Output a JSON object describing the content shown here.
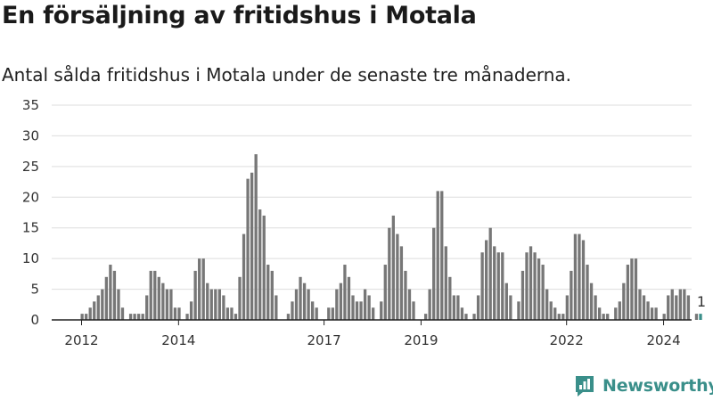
{
  "header": {
    "title": "En försäljning av fritidshus i Motala",
    "subtitle": "Antal sålda fritidshus i Motala under de senaste tre månaderna."
  },
  "brand": {
    "name": "Newsworthy",
    "logo_icon": "newsworthy-logo-icon",
    "color": "#3a8f8a"
  },
  "chart_data": {
    "type": "bar",
    "ylim": [
      0,
      35
    ],
    "yticks": [
      0,
      5,
      10,
      15,
      20,
      25,
      30,
      35
    ],
    "grid": true,
    "x_tick_labels": [
      "2012",
      "2014",
      "2017",
      "2019",
      "2022",
      "2024"
    ],
    "bar_color": "#777777",
    "highlight_color": "#3a8f8a",
    "values": [
      1,
      1,
      2,
      3,
      4,
      5,
      7,
      9,
      8,
      5,
      2,
      0,
      1,
      1,
      1,
      1,
      4,
      8,
      8,
      7,
      6,
      5,
      5,
      2,
      2,
      0,
      1,
      3,
      8,
      10,
      10,
      6,
      5,
      5,
      5,
      4,
      2,
      2,
      1,
      7,
      14,
      23,
      24,
      27,
      18,
      17,
      9,
      8,
      4,
      0,
      0,
      1,
      3,
      5,
      7,
      6,
      5,
      3,
      2,
      0,
      0,
      2,
      2,
      5,
      6,
      9,
      7,
      4,
      3,
      3,
      5,
      4,
      2,
      0,
      3,
      9,
      15,
      17,
      14,
      12,
      8,
      5,
      3,
      0,
      0,
      1,
      5,
      15,
      21,
      21,
      12,
      7,
      4,
      4,
      2,
      1,
      0,
      1,
      4,
      11,
      13,
      15,
      12,
      11,
      11,
      6,
      4,
      0,
      3,
      8,
      11,
      12,
      11,
      10,
      9,
      5,
      3,
      2,
      1,
      1,
      4,
      8,
      14,
      14,
      13,
      9,
      6,
      4,
      2,
      1,
      1,
      0,
      2,
      3,
      6,
      9,
      10,
      10,
      5,
      4,
      3,
      2,
      2,
      0,
      1,
      4,
      5,
      4,
      5,
      5,
      4,
      0,
      1,
      1
    ],
    "highlight_index": 153,
    "highlight_label": "1"
  }
}
